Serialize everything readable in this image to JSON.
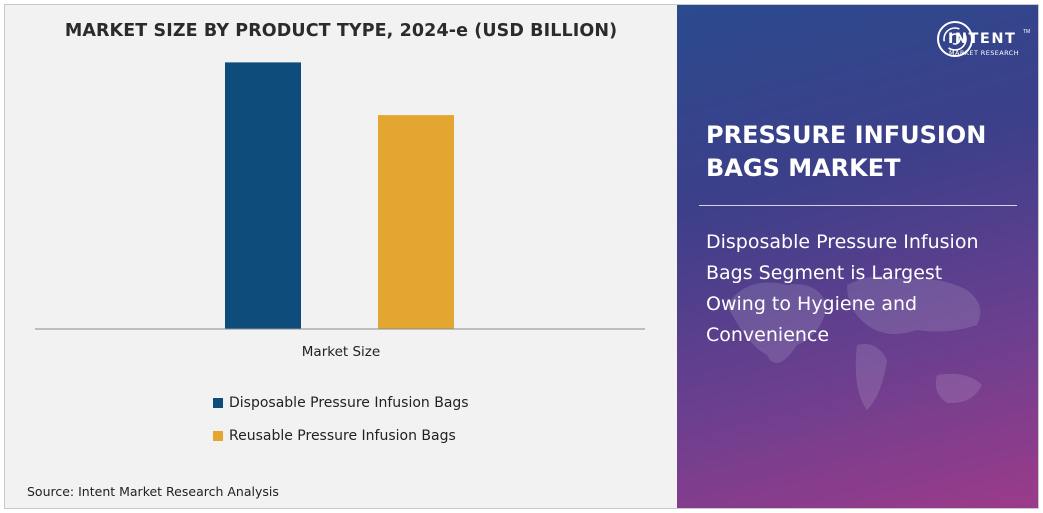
{
  "chart_data": {
    "type": "bar",
    "title": "MARKET SIZE BY PRODUCT TYPE, 2024-e (USD BILLION)",
    "categories": [
      "Market Size"
    ],
    "xlabel": "Market Size",
    "ylabel": "",
    "ylim": [
      0,
      1
    ],
    "grid": false,
    "legend_position": "bottom",
    "series": [
      {
        "name": "Disposable Pressure Infusion Bags",
        "color": "#0e4d7b",
        "values": [
          0.86
        ]
      },
      {
        "name": "Reusable Pressure Infusion Bags",
        "color": "#e3a631",
        "values": [
          0.69
        ]
      }
    ]
  },
  "source": "Source: Intent Market Research Analysis",
  "brand": {
    "name": "INTENT",
    "tagline": "MARKET RESEARCH",
    "tm": "TM"
  },
  "panel": {
    "title_line1": "PRESSURE INFUSION",
    "title_line2": "BAGS MARKET",
    "desc_lines": [
      "Disposable Pressure Infusion",
      "Bags Segment is Largest",
      "Owing to Hygiene and",
      "Convenience"
    ]
  }
}
